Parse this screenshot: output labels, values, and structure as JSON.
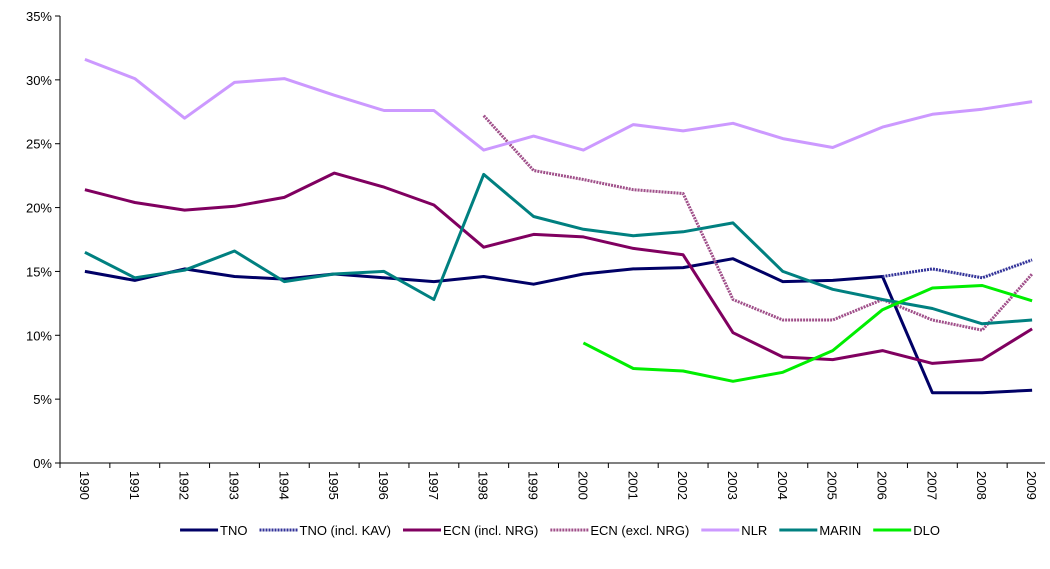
{
  "chart_data": {
    "type": "line",
    "categories": [
      "1990",
      "1991",
      "1992",
      "1993",
      "1994",
      "1995",
      "1996",
      "1997",
      "1998",
      "1999",
      "2000",
      "2001",
      "2002",
      "2003",
      "2004",
      "2005",
      "2006",
      "2007",
      "2008",
      "2009"
    ],
    "ylim": [
      0,
      35
    ],
    "yticks": [
      {
        "value": 0,
        "label": "0%"
      },
      {
        "value": 5,
        "label": "5%"
      },
      {
        "value": 10,
        "label": "10%"
      },
      {
        "value": 15,
        "label": "15%"
      },
      {
        "value": 20,
        "label": "20%"
      },
      {
        "value": 25,
        "label": "25%"
      },
      {
        "value": 30,
        "label": "30%"
      },
      {
        "value": 35,
        "label": "35%"
      }
    ],
    "grid": false,
    "legend": "bottom",
    "series": [
      {
        "name": "TNO",
        "color": "#000066",
        "values": [
          15.0,
          14.3,
          15.2,
          14.6,
          14.4,
          14.8,
          14.5,
          14.2,
          14.6,
          14.0,
          14.8,
          15.2,
          15.3,
          16.0,
          14.2,
          14.3,
          14.6,
          5.5,
          5.5,
          5.7
        ]
      },
      {
        "name": "TNO (incl. KAV)",
        "color": "#333399",
        "dashed": true,
        "values": [
          null,
          null,
          null,
          null,
          null,
          null,
          null,
          null,
          null,
          null,
          null,
          null,
          null,
          null,
          null,
          null,
          14.6,
          15.2,
          14.5,
          15.9
        ]
      },
      {
        "name": "ECN (incl. NRG)",
        "color": "#800060",
        "values": [
          21.4,
          20.4,
          19.8,
          20.1,
          20.8,
          22.7,
          21.6,
          20.2,
          16.9,
          17.9,
          17.7,
          16.8,
          16.3,
          10.2,
          8.3,
          8.1,
          8.8,
          7.8,
          8.1,
          10.5
        ]
      },
      {
        "name": "ECN (excl. NRG)",
        "color": "#a0508a",
        "dashed": true,
        "values": [
          null,
          null,
          null,
          null,
          null,
          null,
          null,
          null,
          27.2,
          22.9,
          22.2,
          21.4,
          21.1,
          12.8,
          11.2,
          11.2,
          12.8,
          11.2,
          10.4,
          14.8
        ]
      },
      {
        "name": "NLR",
        "color": "#cc99ff",
        "values": [
          31.6,
          30.1,
          27.0,
          29.8,
          30.1,
          28.8,
          27.6,
          27.6,
          24.5,
          25.6,
          24.5,
          26.5,
          26.0,
          26.6,
          25.4,
          24.7,
          26.3,
          27.3,
          27.7,
          28.3
        ]
      },
      {
        "name": "MARIN",
        "color": "#008080",
        "values": [
          16.5,
          14.5,
          15.1,
          16.6,
          14.2,
          14.8,
          15.0,
          12.8,
          22.6,
          19.3,
          18.3,
          17.8,
          18.1,
          18.8,
          15.0,
          13.6,
          12.8,
          12.1,
          10.9,
          11.2
        ]
      },
      {
        "name": "DLO",
        "color": "#00ee00",
        "values": [
          null,
          null,
          null,
          null,
          null,
          null,
          null,
          null,
          null,
          null,
          9.4,
          7.4,
          7.2,
          6.4,
          7.1,
          8.8,
          12.0,
          13.7,
          13.9,
          12.7
        ]
      }
    ]
  }
}
